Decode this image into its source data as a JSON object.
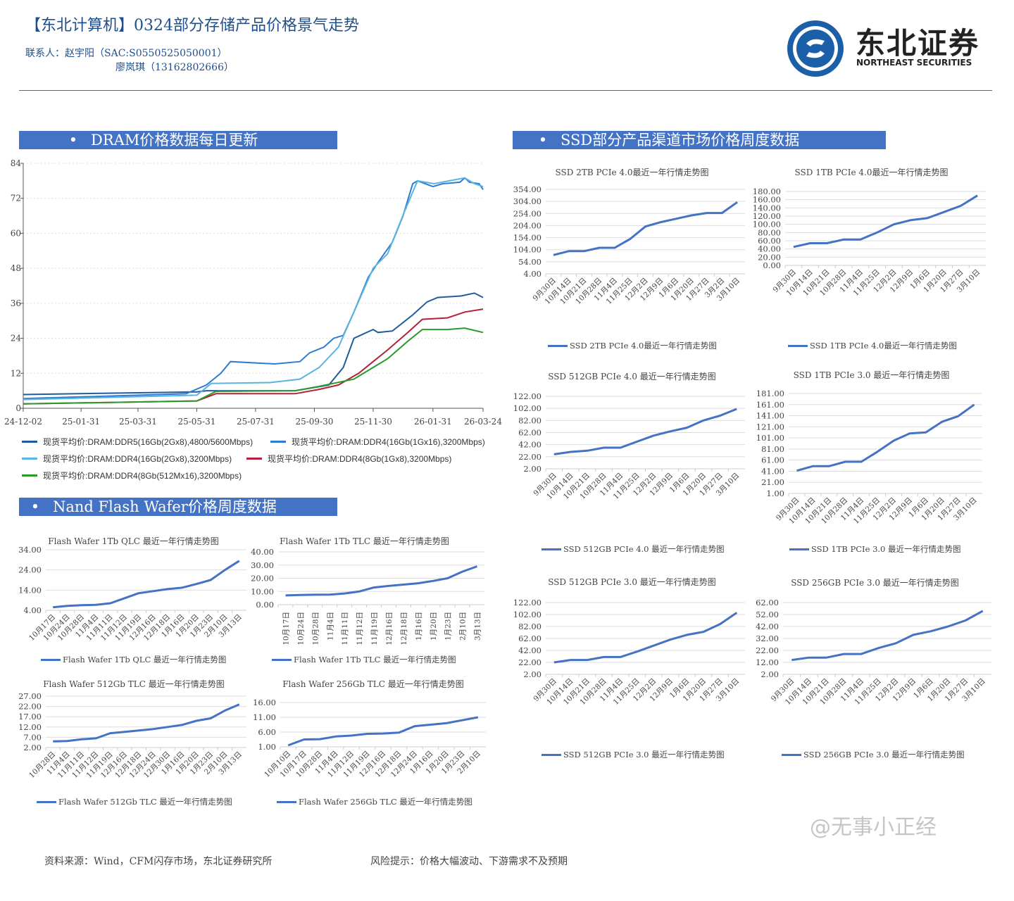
{
  "header": {
    "title": "【东北计算机】0324部分存储产品价格景气走势",
    "contact_line1": "联系人：赵宇阳（SAC:S0550525050001）",
    "contact_line2": "廖岚琪（13162802666）"
  },
  "logo": {
    "name_cn": "东北证券",
    "name_en": "NORTHEAST SECURITIES",
    "color": "#1a5fa8"
  },
  "sections": {
    "dram": "DRAM价格数据每日更新",
    "ssd": "SSD部分产品渠道市场价格周度数据",
    "nand": "Nand Flash Wafer价格周度数据",
    "bullet": "•"
  },
  "watermark": "@无事小正经",
  "footer": {
    "source": "资料来源：Wind，CFM闪存市场，东北证券研究所",
    "risk": "风险提示：价格大幅波动、下游需求不及预期"
  },
  "chart_data": [
    {
      "type": "line",
      "title": "",
      "ylim": [
        0,
        84
      ],
      "yticks": [
        "0",
        "12",
        "24",
        "36",
        "48",
        "60",
        "72",
        "84"
      ],
      "xticks": [
        "24-12-02",
        "25-01-31",
        "25-03-31",
        "25-05-31",
        "25-07-31",
        "25-09-30",
        "25-11-30",
        "26-01-31",
        "26-03-24"
      ],
      "grid": true,
      "legend": "bottom",
      "series": [
        {
          "name": "现货平均价:DRAM:DDR5(16Gb(2Gx8),4800/5600Mbps)",
          "color": "#1f5c99",
          "points": [
            [
              "2024-12-02",
              4.7
            ],
            [
              "2025-03-31",
              5.3
            ],
            [
              "2025-05-31",
              5.6
            ],
            [
              "2025-06-10",
              6
            ],
            [
              "2025-09-10",
              6
            ],
            [
              "2025-10-15",
              8
            ],
            [
              "2025-10-30",
              14
            ],
            [
              "2025-11-10",
              24
            ],
            [
              "2025-11-30",
              27
            ],
            [
              "2025-12-05",
              26
            ],
            [
              "2025-12-20",
              26.5
            ],
            [
              "2026-01-10",
              32
            ],
            [
              "2026-01-25",
              36.5
            ],
            [
              "2026-02-05",
              38
            ],
            [
              "2026-03-01",
              38.5
            ],
            [
              "2026-03-15",
              39.5
            ],
            [
              "2026-03-24",
              38
            ]
          ]
        },
        {
          "name": "现货平均价:DRAM:DDR4(16Gb(1Gx16),3200Mbps)",
          "color": "#2e7bd0",
          "points": [
            [
              "2024-12-02",
              3.3
            ],
            [
              "2025-05-20",
              5
            ],
            [
              "2025-06-10",
              8
            ],
            [
              "2025-06-25",
              12
            ],
            [
              "2025-07-05",
              16
            ],
            [
              "2025-08-20",
              15.2
            ],
            [
              "2025-09-15",
              16
            ],
            [
              "2025-09-25",
              19
            ],
            [
              "2025-10-10",
              21
            ],
            [
              "2025-10-20",
              24
            ],
            [
              "2025-10-30",
              25
            ],
            [
              "2025-11-10",
              33
            ],
            [
              "2025-11-25",
              45
            ],
            [
              "2025-12-05",
              50
            ],
            [
              "2025-12-20",
              57
            ],
            [
              "2025-12-31",
              66
            ],
            [
              "2026-01-10",
              77
            ],
            [
              "2026-01-15",
              78
            ],
            [
              "2026-01-31",
              76
            ],
            [
              "2026-02-10",
              77
            ],
            [
              "2026-02-28",
              77.5
            ],
            [
              "2026-03-05",
              79
            ],
            [
              "2026-03-10",
              77.5
            ],
            [
              "2026-03-20",
              77
            ],
            [
              "2026-03-24",
              75
            ]
          ]
        },
        {
          "name": "现货平均价:DRAM:DDR4(16Gb(2Gx8),3200Mbps)",
          "color": "#5ab4e0",
          "points": [
            [
              "2024-12-02",
              3
            ],
            [
              "2025-05-31",
              4.5
            ],
            [
              "2025-06-15",
              8.5
            ],
            [
              "2025-08-15",
              8.8
            ],
            [
              "2025-09-15",
              10
            ],
            [
              "2025-10-05",
              14
            ],
            [
              "2025-10-25",
              21
            ],
            [
              "2025-11-10",
              33
            ],
            [
              "2025-11-30",
              48
            ],
            [
              "2025-12-15",
              53
            ],
            [
              "2026-01-01",
              67
            ],
            [
              "2026-01-15",
              78
            ],
            [
              "2026-02-01",
              77
            ],
            [
              "2026-03-05",
              79
            ],
            [
              "2026-03-15",
              77
            ],
            [
              "2026-03-24",
              76
            ]
          ]
        },
        {
          "name": "现货平均价:DRAM:DDR4(8Gb(1Gx8),3200Mbps)",
          "color": "#b5203a",
          "points": [
            [
              "2024-12-02",
              1.5
            ],
            [
              "2025-05-31",
              2.5
            ],
            [
              "2025-06-20",
              5
            ],
            [
              "2025-09-10",
              5
            ],
            [
              "2025-10-05",
              6.5
            ],
            [
              "2025-10-25",
              8
            ],
            [
              "2025-11-15",
              12
            ],
            [
              "2025-11-30",
              16
            ],
            [
              "2025-12-15",
              20
            ],
            [
              "2026-01-05",
              26
            ],
            [
              "2026-01-20",
              30.5
            ],
            [
              "2026-02-15",
              31
            ],
            [
              "2026-03-05",
              33
            ],
            [
              "2026-03-24",
              34
            ]
          ]
        },
        {
          "name": "现货平均价:DRAM:DDR4(8Gb(512Mx16),3200Mbps)",
          "color": "#2a9a2a",
          "points": [
            [
              "2024-12-02",
              1.5
            ],
            [
              "2025-05-31",
              2.5
            ],
            [
              "2025-06-20",
              5.8
            ],
            [
              "2025-09-10",
              6
            ],
            [
              "2025-10-05",
              7.5
            ],
            [
              "2025-11-10",
              10
            ],
            [
              "2025-11-30",
              14
            ],
            [
              "2025-12-15",
              17
            ],
            [
              "2026-01-05",
              23
            ],
            [
              "2026-01-20",
              27
            ],
            [
              "2026-02-15",
              27
            ],
            [
              "2026-03-05",
              27.5
            ],
            [
              "2026-03-24",
              26
            ]
          ]
        }
      ]
    },
    {
      "type": "line",
      "title": "SSD 2TB PCIe 4.0最近一年行情走势图",
      "legend_label": "SSD 2TB PCIe 4.0最近一年行情走势图",
      "ylim": [
        4,
        354
      ],
      "yticks": [
        "4.00",
        "54.00",
        "104.00",
        "154.00",
        "204.00",
        "254.00",
        "304.00",
        "354.00"
      ],
      "categories": [
        "9月30日",
        "10月14日",
        "10月21日",
        "10月28日",
        "11月4日",
        "11月25日",
        "12月2日",
        "12月9日",
        "1月6日",
        "1月20日",
        "1月27日",
        "3月2日",
        "3月10日"
      ],
      "values": [
        82,
        98,
        98,
        112,
        112,
        148,
        200,
        218,
        232,
        246,
        256,
        256,
        301
      ]
    },
    {
      "type": "line",
      "title": "SSD 1TB PCIe 4.0最近一年行情走势图",
      "legend_label": "SSD 1TB PCIe 4.0最近一年行情走势图",
      "ylim": [
        0,
        180
      ],
      "yticks": [
        "0.00",
        "20.00",
        "40.00",
        "60.00",
        "80.00",
        "100.00",
        "120.00",
        "140.00",
        "160.00",
        "180.00"
      ],
      "categories": [
        "9月30日",
        "10月14日",
        "10月21日",
        "10月28日",
        "11月4日",
        "11月25日",
        "12月2日",
        "12月9日",
        "1月6日",
        "1月20日",
        "1月27日",
        "3月10日"
      ],
      "values": [
        45,
        54,
        54,
        63,
        63,
        80,
        100,
        110,
        115,
        130,
        145,
        170
      ]
    },
    {
      "type": "line",
      "title": "SSD 512GB PCIe 4.0 最近一年行情走势图",
      "legend_label": "SSD 512GB PCIe 4.0 最近一年行情走势图",
      "ylim": [
        2,
        122
      ],
      "yticks": [
        "2.00",
        "22.00",
        "42.00",
        "62.00",
        "82.00",
        "102.00",
        "122.00"
      ],
      "categories": [
        "9月30日",
        "10月14日",
        "10月21日",
        "10月28日",
        "11月4日",
        "11月25日",
        "12月2日",
        "12月9日",
        "1月6日",
        "1月20日",
        "1月27日",
        "3月10日"
      ],
      "values": [
        26,
        30,
        32,
        37,
        37,
        47,
        57,
        64,
        70,
        82,
        90,
        101
      ]
    },
    {
      "type": "line",
      "title": "SSD 1TB PCIe 3.0 最近一年行情走势图",
      "legend_label": "SSD 1TB PCIe 3.0 最近一年行情走势图",
      "ylim": [
        1,
        181
      ],
      "yticks": [
        "1.00",
        "21.00",
        "41.00",
        "61.00",
        "81.00",
        "101.00",
        "121.00",
        "141.00",
        "161.00",
        "181.00"
      ],
      "categories": [
        "9月30日",
        "10月14日",
        "10月21日",
        "10月28日",
        "11月4日",
        "11月25日",
        "12月2日",
        "12月9日",
        "1月6日",
        "1月20日",
        "1月27日",
        "3月10日"
      ],
      "values": [
        42,
        50,
        50,
        58,
        58,
        76,
        96,
        109,
        111,
        130,
        140,
        161
      ]
    },
    {
      "type": "line",
      "title": "SSD 512GB PCIe 3.0 最近一年行情走势图",
      "legend_label": "SSD 512GB PCIe 3.0 最近一年行情走势图",
      "ylim": [
        2,
        122
      ],
      "yticks": [
        "2.00",
        "22.00",
        "42.00",
        "62.00",
        "82.00",
        "102.00",
        "122.00"
      ],
      "categories": [
        "9月30日",
        "10月14日",
        "10月21日",
        "10月28日",
        "11月4日",
        "11月25日",
        "12月2日",
        "12月9日",
        "1月6日",
        "1月20日",
        "1月27日",
        "3月10日"
      ],
      "values": [
        22,
        26,
        26,
        31,
        31,
        40,
        50,
        60,
        68,
        73,
        86,
        105
      ]
    },
    {
      "type": "line",
      "title": "SSD 256GB PCIe 3.0 最近一年行情走势图",
      "legend_label": "SSD 256GB PCIe 3.0 最近一年行情走势图",
      "ylim": [
        2,
        62
      ],
      "yticks": [
        "2.00",
        "12.00",
        "22.00",
        "32.00",
        "42.00",
        "52.00",
        "62.00"
      ],
      "categories": [
        "9月30日",
        "10月14日",
        "10月21日",
        "10月28日",
        "11月4日",
        "11月25日",
        "12月2日",
        "12月9日",
        "1月6日",
        "1月20日",
        "1月27日",
        "3月10日"
      ],
      "values": [
        14,
        16,
        16,
        19,
        19,
        24,
        28,
        35,
        38,
        42,
        47,
        55
      ]
    },
    {
      "type": "line",
      "title": "Flash Wafer 1Tb QLC 最近一年行情走势图",
      "legend_label": "Flash Wafer 1Tb QLC 最近一年行情走势图",
      "ylim": [
        4,
        34
      ],
      "yticks": [
        "4.00",
        "14.00",
        "24.00",
        "34.00"
      ],
      "categories": [
        "10月17日",
        "10月24日",
        "10月28日",
        "11月4日",
        "11月11日",
        "11月12日",
        "11月19日",
        "12月16日",
        "12月18日",
        "1月16日",
        "1月20日",
        "1月23日",
        "2月10日",
        "3月13日"
      ],
      "values": [
        5.5,
        6.2,
        6.5,
        6.7,
        7.5,
        10,
        12.5,
        13.5,
        14.5,
        15.2,
        17,
        19,
        24,
        28.5
      ]
    },
    {
      "type": "line",
      "title": "Flash Wafer 1Tb TLC 最近一年行情走势图",
      "legend_label": "Flash Wafer 1Tb TLC 最近一年行情走势图",
      "ylim": [
        0,
        40
      ],
      "yticks": [
        "0.00",
        "10.00",
        "20.00",
        "30.00",
        "40.00"
      ],
      "categories": [
        "10月17日",
        "10月24日",
        "10月28日",
        "11月4日",
        "11月11日",
        "11月12日",
        "11月19日",
        "12月16日",
        "12月18日",
        "1月16日",
        "1月20日",
        "1月23日",
        "2月10日",
        "3月13日"
      ],
      "values": [
        7,
        7.3,
        7.5,
        7.6,
        8.5,
        10,
        13,
        14.2,
        15.2,
        16.2,
        18,
        20,
        25,
        29
      ]
    },
    {
      "type": "line",
      "title": "Flash Wafer 512Gb TLC 最近一年行情走势图",
      "legend_label": "Flash Wafer 512Gb TLC 最近一年行情走势图",
      "ylim": [
        2,
        27
      ],
      "yticks": [
        "2.00",
        "7.00",
        "12.00",
        "17.00",
        "22.00",
        "27.00"
      ],
      "categories": [
        "10月28日",
        "11月4日",
        "11月11日",
        "11月12日",
        "11月19日",
        "12月16日",
        "12月18日",
        "12月24日",
        "12月30日",
        "1月16日",
        "1月20日",
        "1月23日",
        "2月10日",
        "3月13日"
      ],
      "values": [
        5,
        5.2,
        6,
        6.5,
        9,
        9.6,
        10.3,
        11,
        12,
        13,
        15,
        16.2,
        20,
        23
      ]
    },
    {
      "type": "line",
      "title": "Flash Wafer 256Gb TLC 最近一年行情走势图",
      "legend_label": "Flash Wafer 256Gb TLC 最近一年行情走势图",
      "ylim": [
        1,
        16
      ],
      "yticks": [
        "1.00",
        "6.00",
        "11.00",
        "16.00"
      ],
      "categories": [
        "10月10日",
        "10月17日",
        "10月28日",
        "11月4日",
        "11月12日",
        "11月19日",
        "12月16日",
        "12月18日",
        "12月24日",
        "1月16日",
        "1月20日",
        "1月23日",
        "2月10日"
      ],
      "values": [
        1.5,
        3.5,
        3.6,
        4.5,
        4.8,
        5.4,
        5.5,
        5.8,
        8,
        8.5,
        9,
        10,
        11
      ]
    }
  ]
}
